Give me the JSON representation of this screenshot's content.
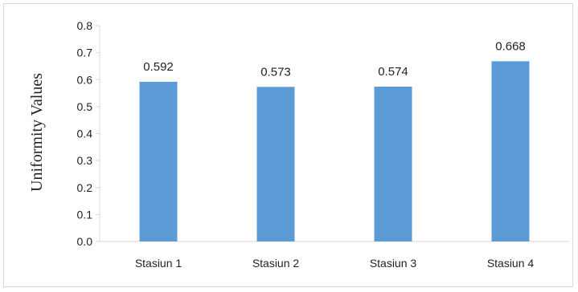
{
  "chart_data": {
    "type": "bar",
    "title": "",
    "xlabel": "",
    "ylabel": "Uniformity Values",
    "categories": [
      "Stasiun 1",
      "Stasiun 2",
      "Stasiun 3",
      "Stasiun 4"
    ],
    "values": [
      0.592,
      0.573,
      0.574,
      0.668
    ],
    "data_labels": [
      "0.592",
      "0.573",
      "0.574",
      "0.668"
    ],
    "ylim": [
      0.0,
      0.8
    ],
    "yticks": [
      "0.0",
      "0.1",
      "0.2",
      "0.3",
      "0.4",
      "0.5",
      "0.6",
      "0.7",
      "0.8"
    ],
    "grid": false,
    "legend": "none",
    "bar_color": "#5b9bd5"
  }
}
